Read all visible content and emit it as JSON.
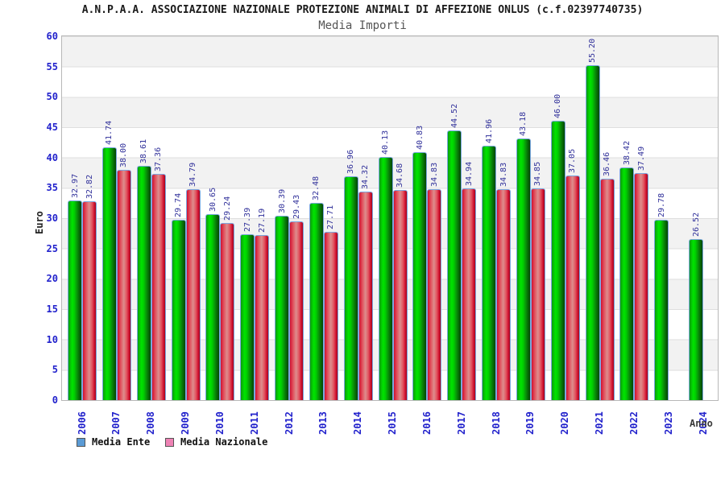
{
  "header": {
    "title": "A.N.P.A.A. ASSOCIAZIONE NAZIONALE PROTEZIONE ANIMALI DI AFFEZIONE ONLUS (c.f.02397740735)",
    "subtitle": "Media Importi"
  },
  "axes": {
    "y_label": "Euro",
    "x_label": "Anno"
  },
  "legend": {
    "items": [
      {
        "label": "Media Ente",
        "swatch_color": "#5b9bd5"
      },
      {
        "label": "Media Nazionale",
        "swatch_color": "#ee82b4"
      }
    ],
    "position": "bottom-left"
  },
  "colors": {
    "axis_text": "#2222cc",
    "value_label_text": "#32329b",
    "bar_media_ente_core": "#00d000",
    "bar_media_nazionale_core": "#dd8d8d",
    "bar_outline": "#7ba7df",
    "band_gray": "#f2f2f2",
    "plot_border": "#b8b8b8"
  },
  "chart_data": {
    "type": "bar",
    "title": "Media Importi",
    "categories": [
      "2006",
      "2007",
      "2008",
      "2009",
      "2010",
      "2011",
      "2012",
      "2013",
      "2014",
      "2015",
      "2016",
      "2017",
      "2018",
      "2019",
      "2020",
      "2021",
      "2022",
      "2023",
      "2024"
    ],
    "series": [
      {
        "name": "Media Ente",
        "bar_style": "green-gradient",
        "values": [
          32.97,
          41.74,
          38.61,
          29.74,
          30.65,
          27.39,
          30.39,
          32.48,
          36.96,
          40.13,
          40.83,
          44.52,
          41.96,
          43.18,
          46.0,
          55.2,
          38.42,
          29.78,
          26.52
        ]
      },
      {
        "name": "Media Nazionale",
        "bar_style": "red-gradient",
        "values": [
          32.82,
          38.0,
          37.36,
          34.79,
          29.24,
          27.19,
          29.43,
          27.71,
          34.32,
          34.68,
          34.83,
          34.94,
          34.83,
          34.85,
          37.05,
          36.46,
          37.49,
          null,
          null
        ]
      }
    ],
    "xlabel": "Anno",
    "ylabel": "Euro",
    "ylim": [
      0,
      60
    ],
    "y_ticks": [
      0,
      5,
      10,
      15,
      20,
      25,
      30,
      35,
      40,
      45,
      50,
      55,
      60
    ],
    "value_labels": true,
    "value_label_rotation": -90,
    "x_tick_rotation": -90,
    "grid": "horizontal-bands",
    "legend_position": "bottom-left"
  }
}
